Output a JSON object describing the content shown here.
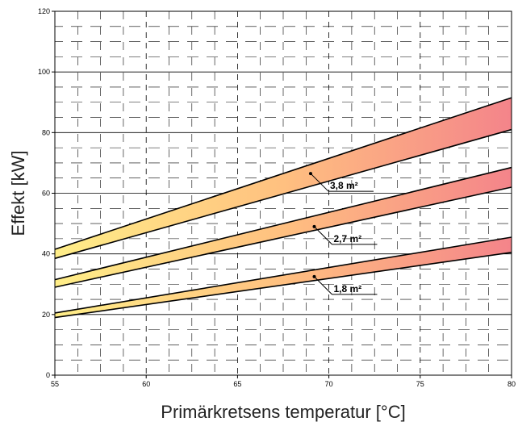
{
  "chart_data": {
    "type": "area",
    "title": "",
    "xlabel": "Primärkretsens temperatur [°C]",
    "ylabel": "Effekt [kW]",
    "xlim": [
      55,
      80
    ],
    "ylim": [
      0,
      120
    ],
    "x_ticks": [
      55,
      60,
      65,
      70,
      75,
      80
    ],
    "y_ticks": [
      0,
      20,
      40,
      60,
      80,
      100,
      120
    ],
    "grid": true,
    "series": [
      {
        "name": "1,8 m²",
        "x": [
          55,
          80
        ],
        "lower": [
          19,
          40.5
        ],
        "upper": [
          20.5,
          45.5
        ],
        "label_point": {
          "x": 69.2,
          "y": 32.5
        }
      },
      {
        "name": "2,7 m²",
        "x": [
          55,
          80
        ],
        "lower": [
          29,
          62
        ],
        "upper": [
          31.5,
          68.5
        ],
        "label_point": {
          "x": 69.2,
          "y": 49
        }
      },
      {
        "name": "3,8 m²",
        "x": [
          55,
          80
        ],
        "lower": [
          38.5,
          81
        ],
        "upper": [
          41.5,
          91.5
        ],
        "label_point": {
          "x": 69,
          "y": 66.5
        }
      }
    ],
    "colors": {
      "gradient_start": "#ffee88",
      "gradient_mid": "#ffc080",
      "gradient_end": "#f4848a",
      "border": "#000000",
      "grid_major": "#000000",
      "grid_minor": "#000000"
    }
  }
}
